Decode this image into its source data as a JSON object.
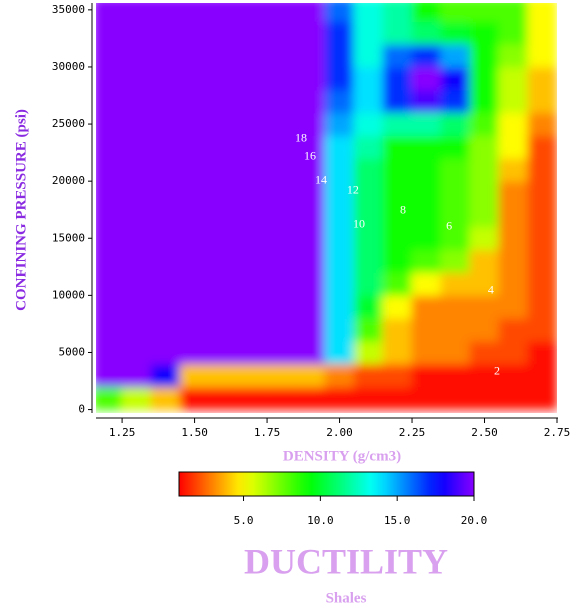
{
  "chart_data": {
    "type": "heatmap",
    "title": "DUCTILITY",
    "subtitle": "Shales",
    "x_label": "DENSITY (g/cm3)",
    "y_label": "CONFINING PRESSURE (psi)",
    "x": [
      1.2,
      1.3,
      1.4,
      1.5,
      1.6,
      1.7,
      1.8,
      1.9,
      2.0,
      2.1,
      2.2,
      2.3,
      2.4,
      2.5,
      2.6,
      2.7
    ],
    "y": [
      1000,
      3000,
      5000,
      7000,
      9000,
      11000,
      13000,
      15000,
      17000,
      19000,
      21000,
      23000,
      25000,
      27000,
      29000,
      31000,
      33000,
      35000
    ],
    "z": [
      [
        8,
        6,
        4,
        1,
        1,
        1,
        1,
        1,
        1,
        1,
        1,
        1,
        1,
        1,
        1,
        1
      ],
      [
        20,
        20,
        18,
        4,
        4,
        4,
        4,
        4,
        3,
        2,
        2,
        1,
        1,
        1,
        1,
        1
      ],
      [
        20,
        20,
        20,
        20,
        20,
        20,
        20,
        20,
        14,
        6,
        4,
        3,
        3,
        2,
        2,
        1
      ],
      [
        20,
        20,
        20,
        20,
        20,
        20,
        20,
        20,
        14,
        8,
        4,
        3,
        3,
        3,
        2,
        2
      ],
      [
        20,
        20,
        20,
        20,
        20,
        20,
        20,
        20,
        14,
        10,
        5,
        3,
        3,
        3,
        3,
        2
      ],
      [
        20,
        20,
        20,
        20,
        20,
        20,
        20,
        20,
        14,
        11,
        8,
        5,
        4,
        4,
        3,
        2
      ],
      [
        20,
        20,
        20,
        20,
        20,
        20,
        20,
        20,
        14,
        11,
        9,
        8,
        7,
        4,
        3,
        2
      ],
      [
        20,
        20,
        20,
        20,
        20,
        20,
        20,
        20,
        14,
        11,
        9,
        9,
        8,
        6,
        3,
        2
      ],
      [
        20,
        20,
        20,
        20,
        20,
        20,
        20,
        20,
        14,
        11,
        9,
        9,
        8,
        7,
        3,
        2
      ],
      [
        20,
        20,
        20,
        20,
        20,
        20,
        20,
        20,
        14,
        11,
        9,
        9,
        8,
        7,
        3,
        2
      ],
      [
        20,
        20,
        20,
        20,
        20,
        20,
        20,
        20,
        14,
        11,
        9,
        9,
        8,
        7,
        4,
        2
      ],
      [
        20,
        20,
        20,
        20,
        20,
        20,
        20,
        20,
        14,
        12,
        9,
        9,
        9,
        7,
        5,
        2
      ],
      [
        20,
        20,
        20,
        20,
        20,
        20,
        20,
        20,
        15,
        13,
        12,
        12,
        11,
        8,
        5,
        3
      ],
      [
        20,
        20,
        20,
        20,
        20,
        20,
        20,
        20,
        16,
        14,
        17,
        19,
        17,
        9,
        6,
        4
      ],
      [
        20,
        20,
        20,
        20,
        20,
        20,
        20,
        20,
        17,
        14,
        17,
        20,
        18,
        9,
        6,
        4
      ],
      [
        20,
        20,
        20,
        20,
        20,
        20,
        20,
        20,
        17,
        13,
        16,
        17,
        15,
        9,
        7,
        5
      ],
      [
        20,
        20,
        20,
        20,
        20,
        20,
        20,
        20,
        17,
        13,
        12,
        11,
        10,
        9,
        8,
        5
      ],
      [
        20,
        20,
        20,
        20,
        20,
        20,
        20,
        20,
        16,
        13,
        12,
        9,
        8,
        8,
        8,
        5
      ]
    ],
    "xlim": [
      1.16,
      2.75
    ],
    "ylim": [
      -300,
      35600
    ],
    "zlim": [
      0.8,
      20
    ],
    "xticks": [
      1.25,
      {
        "value": 1.5,
        "label": "1.50"
      },
      1.75,
      {
        "value": 2,
        "label": "2.00"
      },
      2.25,
      {
        "value": 2.5,
        "label": "2.50"
      },
      2.75
    ],
    "yticks": [
      0,
      5000,
      10000,
      15000,
      20000,
      25000,
      30000,
      35000
    ],
    "zticks": [
      {
        "value": 5,
        "label": "5.0"
      },
      {
        "value": 10,
        "label": "10.0"
      },
      {
        "value": 15,
        "label": "15.0"
      },
      {
        "value": 20,
        "label": "20.0"
      }
    ],
    "contour_labels": [
      {
        "value": 18,
        "x": 1.867,
        "y": 23700
      },
      {
        "value": 16,
        "x": 1.898,
        "y": 22140
      },
      {
        "value": 14,
        "x": 1.936,
        "y": 20040
      },
      {
        "value": 12,
        "x": 2.046,
        "y": 19160
      },
      {
        "value": 10,
        "x": 2.067,
        "y": 16190
      },
      {
        "value": 8,
        "x": 2.219,
        "y": 17410
      },
      {
        "value": 6,
        "x": 2.378,
        "y": 16010
      },
      {
        "value": 4,
        "x": 2.522,
        "y": 10410
      },
      {
        "value": 2,
        "x": 2.543,
        "y": 3325
      }
    ]
  }
}
